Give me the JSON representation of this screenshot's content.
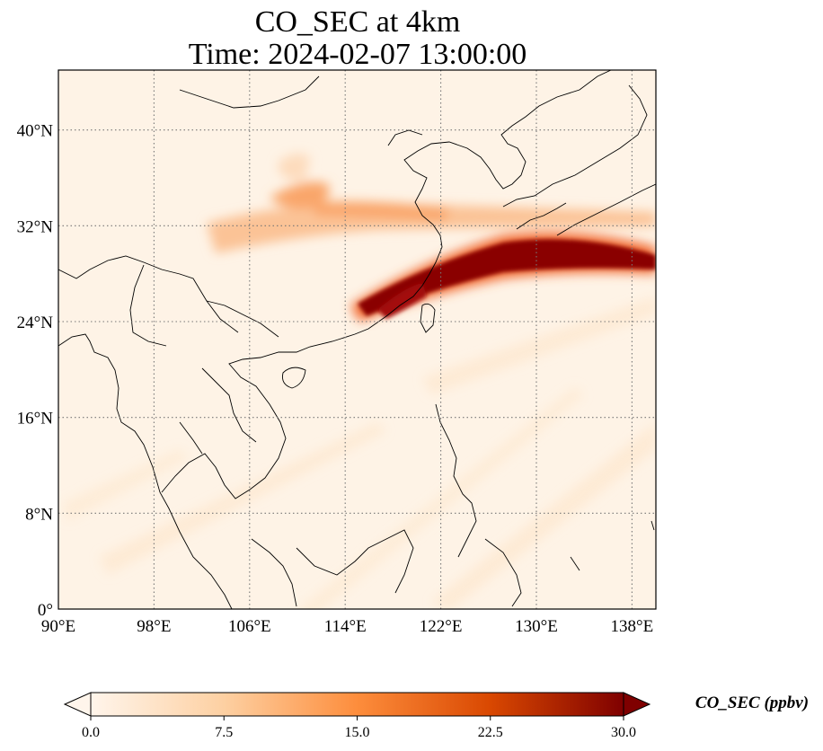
{
  "map": {
    "title_line1": "CO_SEC at 4km",
    "title_line2": "Time: 2024-02-07 13:00:00",
    "extent": {
      "lon_min": 90,
      "lon_max": 140,
      "lat_min": 0,
      "lat_max": 45
    },
    "lon_ticks": [
      {
        "value": 90,
        "label": "90°E"
      },
      {
        "value": 98,
        "label": "98°E"
      },
      {
        "value": 106,
        "label": "106°E"
      },
      {
        "value": 114,
        "label": "114°E"
      },
      {
        "value": 122,
        "label": "122°E"
      },
      {
        "value": 130,
        "label": "130°E"
      },
      {
        "value": 138,
        "label": "138°E"
      }
    ],
    "lat_ticks": [
      {
        "value": 0,
        "label": "0°"
      },
      {
        "value": 8,
        "label": "8°N"
      },
      {
        "value": 16,
        "label": "16°N"
      },
      {
        "value": 24,
        "label": "24°N"
      },
      {
        "value": 32,
        "label": "32°N"
      },
      {
        "value": 40,
        "label": "40°N"
      }
    ],
    "gridlines": true,
    "colormap": [
      "#fff5eb",
      "#fdd0a2",
      "#fd8d3c",
      "#d94801",
      "#7f0000"
    ]
  },
  "colorbar": {
    "label": "CO_SEC (ppbv)",
    "min": 0.0,
    "max": 30.0,
    "ticks": [
      "0.0",
      "7.5",
      "15.0",
      "22.5",
      "30.0"
    ],
    "extend": "both",
    "orientation": "horizontal"
  }
}
